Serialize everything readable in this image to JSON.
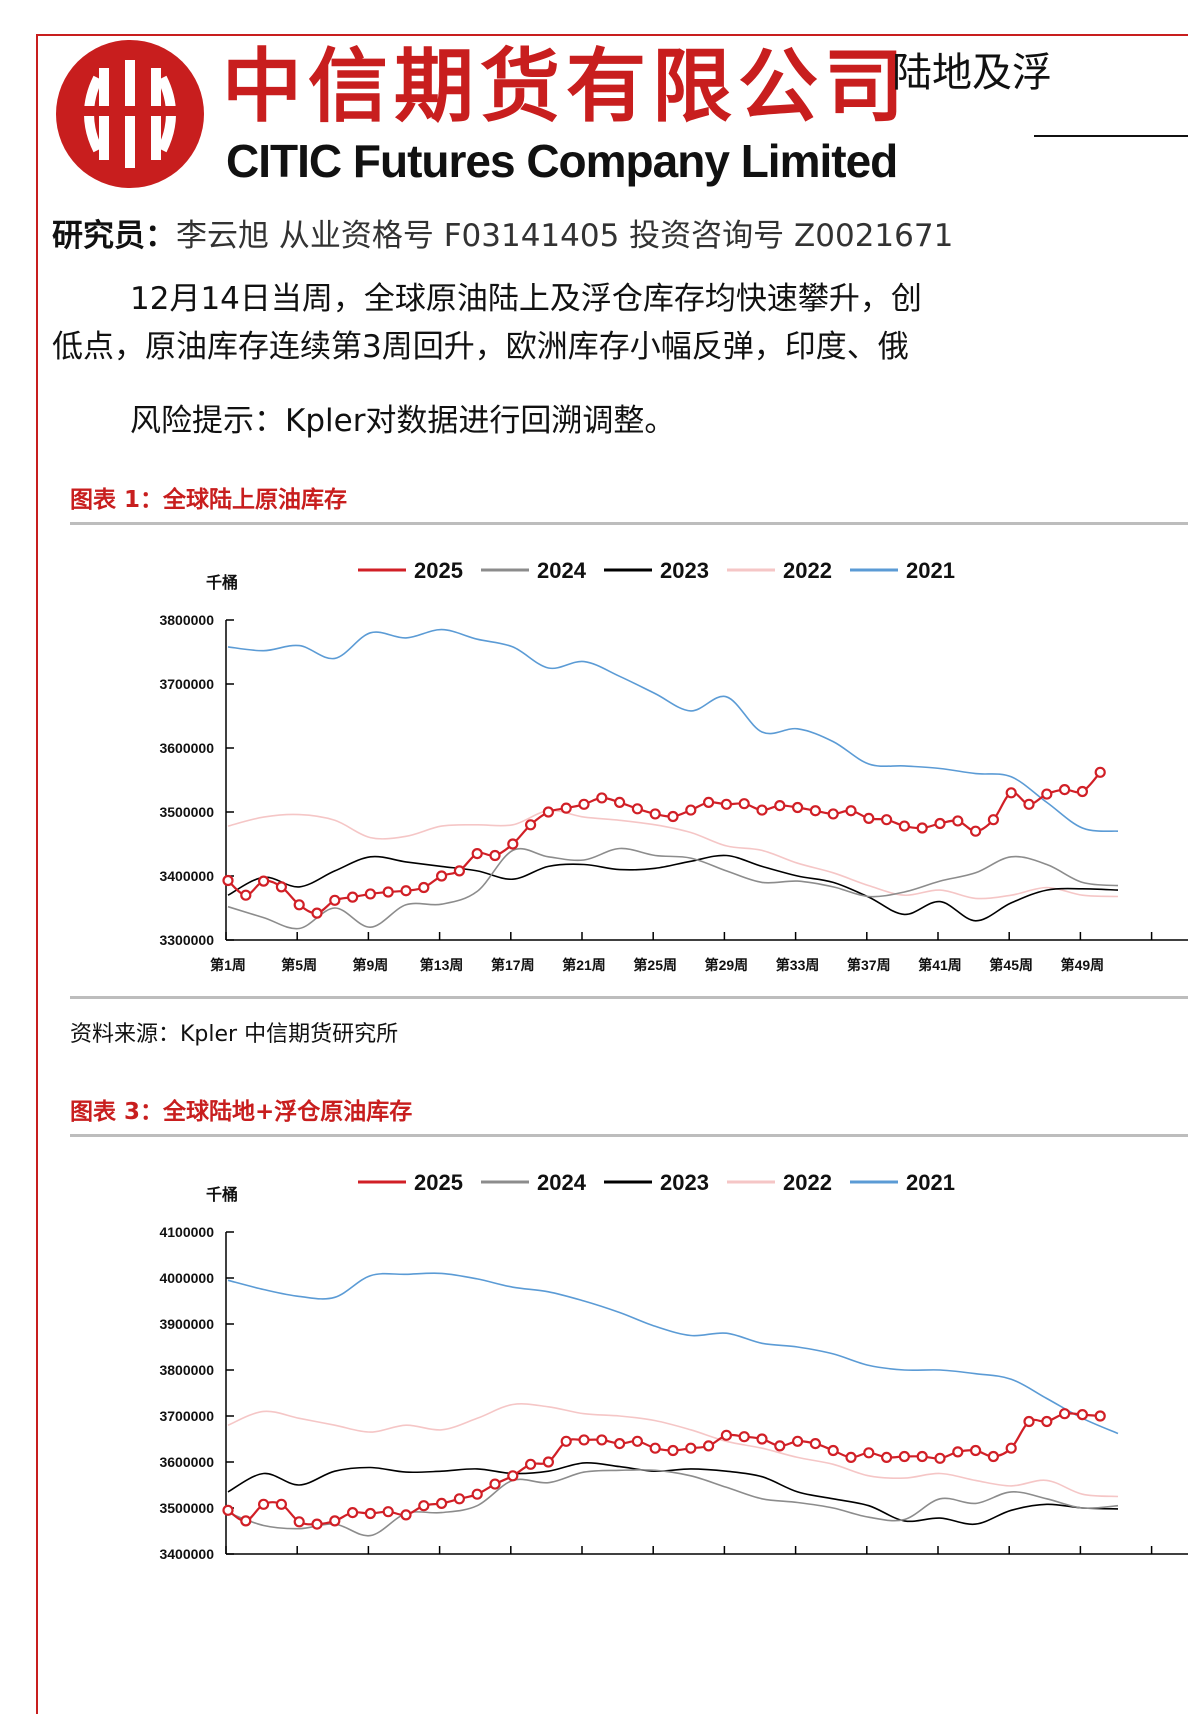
{
  "header": {
    "company_cn": "中信期货有限公司",
    "company_en": "CITIC Futures Company Limited",
    "report_title_partial": "陆地及浮"
  },
  "researcher": {
    "label": "研究员：",
    "text": "李云旭  从业资格号 F03141405 投资咨询号 Z0021671"
  },
  "body": {
    "para1_line1": "12月14日当周，全球原油陆上及浮仓库存均快速攀升，创",
    "para1_line2": "低点，原油库存连续第3周回升，欧洲库存小幅反弹，印度、俄",
    "risk": "风险提示：Kpler对数据进行回溯调整。"
  },
  "source_note": "资料来源：Kpler 中信期货研究所",
  "colors": {
    "brand_red": "#c81e1e",
    "s2025": "#d11f26",
    "s2024": "#8c8c8c",
    "s2023": "#000000",
    "s2022": "#f5c6c6",
    "s2021": "#5b9bd5"
  },
  "chart_data": [
    {
      "id": "chart1",
      "type": "line",
      "title": "图表 1：全球陆上原油库存",
      "unit": "千桶",
      "ylim": [
        3300000,
        3800000
      ],
      "yticks": [
        3300000,
        3400000,
        3500000,
        3600000,
        3700000,
        3800000
      ],
      "xticks": [
        "第1周",
        "第5周",
        "第9周",
        "第13周",
        "第17周",
        "第21周",
        "第25周",
        "第29周",
        "第33周",
        "第37周",
        "第41周",
        "第45周",
        "第49周"
      ],
      "series": [
        {
          "name": "2025",
          "color": "#d11f26",
          "markers": true,
          "x": [
            1,
            2,
            3,
            4,
            5,
            6,
            7,
            8,
            9,
            10,
            11,
            12,
            13,
            14,
            15,
            16,
            17,
            18,
            19,
            20,
            21,
            22,
            23,
            24,
            25,
            26,
            27,
            28,
            29,
            30,
            31,
            32,
            33,
            34,
            35,
            36,
            37,
            38,
            39,
            40,
            41,
            42,
            43,
            44,
            45,
            46,
            47,
            48,
            49,
            50
          ],
          "values": [
            3393000,
            3370000,
            3392000,
            3383000,
            3355000,
            3342000,
            3362000,
            3367000,
            3372000,
            3375000,
            3377000,
            3382000,
            3400000,
            3408000,
            3435000,
            3432000,
            3450000,
            3480000,
            3500000,
            3506000,
            3512000,
            3522000,
            3515000,
            3505000,
            3497000,
            3493000,
            3503000,
            3515000,
            3512000,
            3513000,
            3503000,
            3510000,
            3507000,
            3502000,
            3497000,
            3502000,
            3490000,
            3488000,
            3478000,
            3475000,
            3482000,
            3486000,
            3470000,
            3488000,
            3530000,
            3512000,
            3528000,
            3535000,
            3532000,
            3562000
          ]
        },
        {
          "name": "2024",
          "color": "#8c8c8c",
          "markers": false,
          "x": [
            1,
            3,
            5,
            7,
            9,
            11,
            13,
            15,
            17,
            19,
            21,
            23,
            25,
            27,
            29,
            31,
            33,
            35,
            37,
            39,
            41,
            43,
            45,
            47,
            49,
            51
          ],
          "values": [
            3352000,
            3335000,
            3318000,
            3350000,
            3320000,
            3355000,
            3356000,
            3376000,
            3440000,
            3430000,
            3425000,
            3443000,
            3432000,
            3428000,
            3408000,
            3390000,
            3392000,
            3383000,
            3368000,
            3375000,
            3392000,
            3405000,
            3430000,
            3418000,
            3390000,
            3385000
          ]
        },
        {
          "name": "2023",
          "color": "#000000",
          "markers": false,
          "x": [
            1,
            3,
            5,
            7,
            9,
            11,
            13,
            15,
            17,
            19,
            21,
            23,
            25,
            27,
            29,
            31,
            33,
            35,
            37,
            39,
            41,
            43,
            45,
            47,
            49,
            51
          ],
          "values": [
            3370000,
            3398000,
            3383000,
            3408000,
            3430000,
            3422000,
            3415000,
            3408000,
            3395000,
            3415000,
            3418000,
            3410000,
            3412000,
            3423000,
            3432000,
            3415000,
            3400000,
            3390000,
            3367000,
            3340000,
            3360000,
            3330000,
            3358000,
            3378000,
            3380000,
            3378000
          ]
        },
        {
          "name": "2022",
          "color": "#f5c6c6",
          "markers": false,
          "x": [
            1,
            3,
            5,
            7,
            9,
            11,
            13,
            15,
            17,
            19,
            21,
            23,
            25,
            27,
            29,
            31,
            33,
            35,
            37,
            39,
            41,
            43,
            45,
            47,
            49,
            51
          ],
          "values": [
            3478000,
            3492000,
            3496000,
            3487000,
            3460000,
            3462000,
            3478000,
            3480000,
            3480000,
            3502000,
            3492000,
            3487000,
            3480000,
            3468000,
            3447000,
            3440000,
            3420000,
            3405000,
            3385000,
            3370000,
            3378000,
            3365000,
            3370000,
            3382000,
            3370000,
            3368000
          ]
        },
        {
          "name": "2021",
          "color": "#5b9bd5",
          "markers": false,
          "x": [
            1,
            3,
            5,
            7,
            9,
            11,
            13,
            15,
            17,
            19,
            21,
            23,
            25,
            27,
            29,
            31,
            33,
            35,
            37,
            39,
            41,
            43,
            45,
            47,
            49,
            51
          ],
          "values": [
            3758000,
            3752000,
            3760000,
            3740000,
            3780000,
            3772000,
            3785000,
            3770000,
            3758000,
            3725000,
            3735000,
            3712000,
            3685000,
            3658000,
            3680000,
            3625000,
            3630000,
            3610000,
            3575000,
            3572000,
            3568000,
            3560000,
            3555000,
            3515000,
            3475000,
            3470000
          ]
        }
      ]
    },
    {
      "id": "chart3",
      "type": "line",
      "title": "图表 3：全球陆地+浮仓原油库存",
      "unit": "千桶",
      "ylim": [
        3400000,
        4100000
      ],
      "yticks": [
        3400000,
        3500000,
        3600000,
        3700000,
        3800000,
        3900000,
        4000000,
        4100000
      ],
      "xticks": [
        "第1周",
        "第5周",
        "第9周",
        "第13周",
        "第17周",
        "第21周",
        "第25周",
        "第29周",
        "第33周",
        "第37周",
        "第41周",
        "第45周",
        "第49周"
      ],
      "series": [
        {
          "name": "2025",
          "color": "#d11f26",
          "markers": true,
          "x": [
            1,
            2,
            3,
            4,
            5,
            6,
            7,
            8,
            9,
            10,
            11,
            12,
            13,
            14,
            15,
            16,
            17,
            18,
            19,
            20,
            21,
            22,
            23,
            24,
            25,
            26,
            27,
            28,
            29,
            30,
            31,
            32,
            33,
            34,
            35,
            36,
            37,
            38,
            39,
            40,
            41,
            42,
            43,
            44,
            45,
            46,
            47,
            48,
            49,
            50
          ],
          "values": [
            3495000,
            3472000,
            3508000,
            3508000,
            3470000,
            3465000,
            3472000,
            3490000,
            3488000,
            3492000,
            3485000,
            3505000,
            3510000,
            3520000,
            3530000,
            3552000,
            3570000,
            3595000,
            3600000,
            3645000,
            3648000,
            3648000,
            3640000,
            3645000,
            3630000,
            3625000,
            3630000,
            3635000,
            3658000,
            3655000,
            3650000,
            3635000,
            3645000,
            3640000,
            3625000,
            3610000,
            3620000,
            3610000,
            3612000,
            3612000,
            3608000,
            3622000,
            3625000,
            3612000,
            3630000,
            3688000,
            3688000,
            3705000,
            3703000,
            3700000
          ]
        },
        {
          "name": "2024",
          "color": "#8c8c8c",
          "markers": false,
          "x": [
            1,
            3,
            5,
            7,
            9,
            11,
            13,
            15,
            17,
            19,
            21,
            23,
            25,
            27,
            29,
            31,
            33,
            35,
            37,
            39,
            41,
            43,
            45,
            47,
            49,
            51
          ],
          "values": [
            3490000,
            3462000,
            3455000,
            3465000,
            3440000,
            3488000,
            3490000,
            3505000,
            3560000,
            3555000,
            3578000,
            3582000,
            3582000,
            3570000,
            3545000,
            3520000,
            3512000,
            3500000,
            3480000,
            3475000,
            3520000,
            3510000,
            3535000,
            3520000,
            3500000,
            3505000
          ]
        },
        {
          "name": "2023",
          "color": "#000000",
          "markers": false,
          "x": [
            1,
            3,
            5,
            7,
            9,
            11,
            13,
            15,
            17,
            19,
            21,
            23,
            25,
            27,
            29,
            31,
            33,
            35,
            37,
            39,
            41,
            43,
            45,
            47,
            49,
            51
          ],
          "values": [
            3535000,
            3575000,
            3550000,
            3580000,
            3588000,
            3578000,
            3580000,
            3585000,
            3575000,
            3580000,
            3598000,
            3590000,
            3580000,
            3585000,
            3580000,
            3568000,
            3535000,
            3520000,
            3505000,
            3472000,
            3478000,
            3465000,
            3495000,
            3508000,
            3500000,
            3498000
          ]
        },
        {
          "name": "2022",
          "color": "#f5c6c6",
          "markers": false,
          "x": [
            1,
            3,
            5,
            7,
            9,
            11,
            13,
            15,
            17,
            19,
            21,
            23,
            25,
            27,
            29,
            31,
            33,
            35,
            37,
            39,
            41,
            43,
            45,
            47,
            49,
            51
          ],
          "values": [
            3680000,
            3710000,
            3695000,
            3680000,
            3665000,
            3680000,
            3670000,
            3695000,
            3725000,
            3720000,
            3705000,
            3700000,
            3690000,
            3670000,
            3645000,
            3630000,
            3610000,
            3595000,
            3570000,
            3565000,
            3575000,
            3560000,
            3548000,
            3560000,
            3530000,
            3525000
          ]
        },
        {
          "name": "2021",
          "color": "#5b9bd5",
          "markers": false,
          "x": [
            1,
            3,
            5,
            7,
            9,
            11,
            13,
            15,
            17,
            19,
            21,
            23,
            25,
            27,
            29,
            31,
            33,
            35,
            37,
            39,
            41,
            43,
            45,
            47,
            49,
            51
          ],
          "values": [
            3995000,
            3975000,
            3960000,
            3958000,
            4005000,
            4008000,
            4010000,
            3998000,
            3980000,
            3970000,
            3950000,
            3925000,
            3895000,
            3875000,
            3880000,
            3858000,
            3850000,
            3835000,
            3810000,
            3800000,
            3800000,
            3792000,
            3780000,
            3738000,
            3695000,
            3662000
          ]
        }
      ]
    }
  ]
}
